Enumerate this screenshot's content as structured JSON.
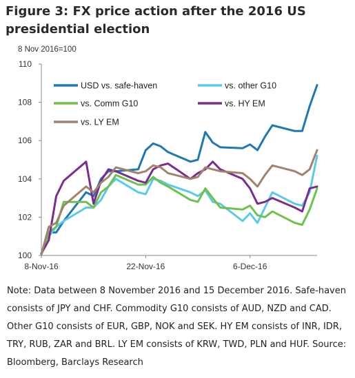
{
  "figure": {
    "title": "Figure 3: FX price action after the 2016 US presidential election",
    "note": "Note: Data between 8 November 2016 and 15 December 2016. Safe-haven consists of JPY and CHF. Commodity G10 consists of AUD, NZD and CAD. Other G10 consists of EUR, GBP, NOK and SEK. HY EM consists of INR, IDR, TRY, RUB, ZAR and BRL. LY EM consists of KRW, TWD, PLN and HUF. Source: Bloomberg, Barclays Research"
  },
  "chart_data": {
    "type": "line",
    "ylabel": "8 Nov 2016=100",
    "ylim": [
      100,
      110
    ],
    "yticks": [
      100,
      102,
      104,
      106,
      108,
      110
    ],
    "xlim": [
      0,
      37
    ],
    "xticks": [
      {
        "x": 0,
        "label": "8-Nov-16"
      },
      {
        "x": 14,
        "label": "22-Nov-16"
      },
      {
        "x": 28,
        "label": "6-Dec-16"
      }
    ],
    "x": [
      0,
      1,
      2,
      3,
      6,
      7,
      8,
      9,
      10,
      13,
      14,
      15,
      16,
      17,
      20,
      21,
      22,
      23,
      24,
      27,
      28,
      29,
      30,
      31,
      34,
      35,
      36,
      37
    ],
    "grid": false,
    "legend": "top-left",
    "series": [
      {
        "name": "USD vs. safe-haven",
        "color": "#1f77b4",
        "values": [
          100.1,
          101.2,
          101.2,
          101.8,
          103.3,
          103.1,
          104.0,
          104.4,
          104.4,
          104.5,
          105.5,
          105.85,
          105.7,
          105.4,
          104.9,
          105.0,
          106.45,
          105.9,
          105.65,
          105.6,
          105.8,
          105.5,
          106.2,
          106.8,
          106.5,
          106.5,
          107.8,
          108.9
        ]
      },
      {
        "name": "vs. other G10",
        "color": "#5bc8f0",
        "values": [
          100.1,
          101.0,
          101.5,
          101.8,
          102.5,
          102.5,
          102.9,
          103.6,
          104.0,
          103.3,
          103.2,
          104.0,
          103.9,
          103.7,
          103.3,
          103.1,
          103.4,
          102.8,
          102.7,
          101.8,
          102.2,
          101.7,
          102.5,
          103.3,
          102.7,
          102.6,
          103.3,
          105.2
        ]
      },
      {
        "name": "vs. Comm G10",
        "color": "#6cc24a",
        "values": [
          100.05,
          101.2,
          101.5,
          102.8,
          102.8,
          102.5,
          103.3,
          103.6,
          104.2,
          103.7,
          103.7,
          104.1,
          103.8,
          103.6,
          102.9,
          102.8,
          103.5,
          103.0,
          102.5,
          102.4,
          102.6,
          102.1,
          102.0,
          102.3,
          101.7,
          101.6,
          102.4,
          103.5
        ]
      },
      {
        "name": "vs. HY EM",
        "color": "#7b2c8f",
        "values": [
          100.1,
          100.8,
          103.1,
          103.9,
          104.9,
          102.7,
          103.9,
          104.5,
          104.4,
          103.9,
          103.8,
          104.5,
          104.7,
          104.8,
          104.0,
          104.3,
          104.5,
          104.9,
          104.5,
          104.0,
          103.5,
          102.7,
          102.8,
          103.0,
          102.5,
          102.3,
          103.5,
          103.6
        ]
      },
      {
        "name": "vs. LY EM",
        "color": "#a0826d",
        "values": [
          100.05,
          101.5,
          101.7,
          102.6,
          103.6,
          103.3,
          103.8,
          104.1,
          104.6,
          104.3,
          104.4,
          104.7,
          104.6,
          104.3,
          104.0,
          104.1,
          104.6,
          104.5,
          104.4,
          104.3,
          104.0,
          103.6,
          104.2,
          104.7,
          104.4,
          104.2,
          104.5,
          105.5
        ]
      }
    ]
  }
}
